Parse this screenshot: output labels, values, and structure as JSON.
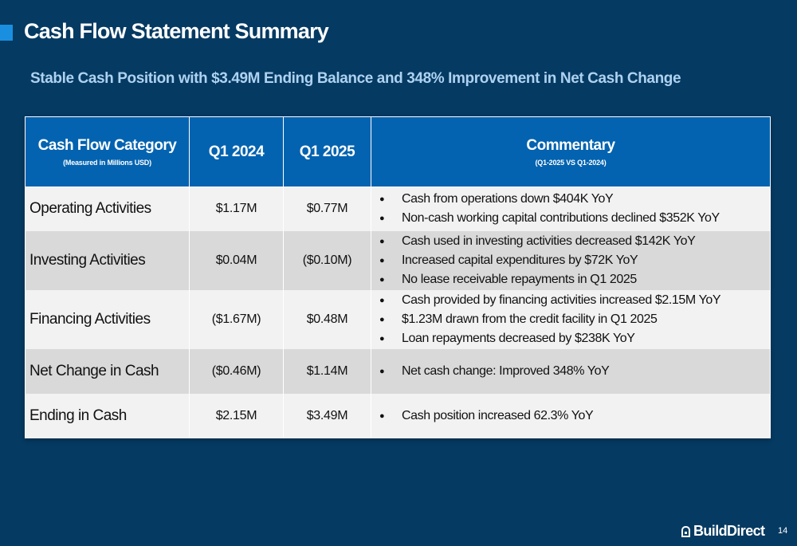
{
  "header": {
    "title": "Cash Flow Statement Summary",
    "subtitle": "Stable Cash Position with $3.49M Ending Balance and 348% Improvement in Net Cash Change"
  },
  "table": {
    "headers": {
      "category": "Cash Flow Category",
      "category_sub": "(Measured in Millions USD)",
      "q1_2024": "Q1 2024",
      "q1_2025": "Q1 2025",
      "commentary": "Commentary",
      "commentary_sub": "(Q1-2025 VS Q1-2024)"
    },
    "rows": [
      {
        "category": "Operating Activities",
        "q1_2024": "$1.17M",
        "q1_2025": "$0.77M",
        "commentary": [
          "Cash from operations down $404K YoY",
          "Non-cash working capital contributions declined $352K YoY"
        ]
      },
      {
        "category": "Investing Activities",
        "q1_2024": "$0.04M",
        "q1_2025": "($0.10M)",
        "commentary": [
          "Cash used in investing activities decreased $142K YoY",
          "Increased capital expenditures by $72K YoY",
          "No lease receivable repayments in Q1 2025"
        ]
      },
      {
        "category": "Financing Activities",
        "q1_2024": "($1.67M)",
        "q1_2025": "$0.48M",
        "commentary": [
          "Cash provided by financing activities increased $2.15M YoY",
          "$1.23M drawn from the credit facility in Q1 2025",
          "Loan repayments decreased by $238K YoY"
        ]
      },
      {
        "category": "Net Change in Cash",
        "q1_2024": "($0.46M)",
        "q1_2025": "$1.14M",
        "commentary": [
          "Net cash change: Improved 348% YoY"
        ]
      },
      {
        "category": "Ending in Cash",
        "q1_2024": "$2.15M",
        "q1_2025": "$3.49M",
        "commentary": [
          "Cash position increased 62.3% YoY"
        ]
      }
    ]
  },
  "footer": {
    "logo_text": "BuildDirect",
    "logo_icon": "house-icon",
    "page_number": "14"
  },
  "colors": {
    "background": "#053a62",
    "header_fill": "#0363b0",
    "accent": "#1a8fe0",
    "subtitle": "#aed2f0"
  }
}
